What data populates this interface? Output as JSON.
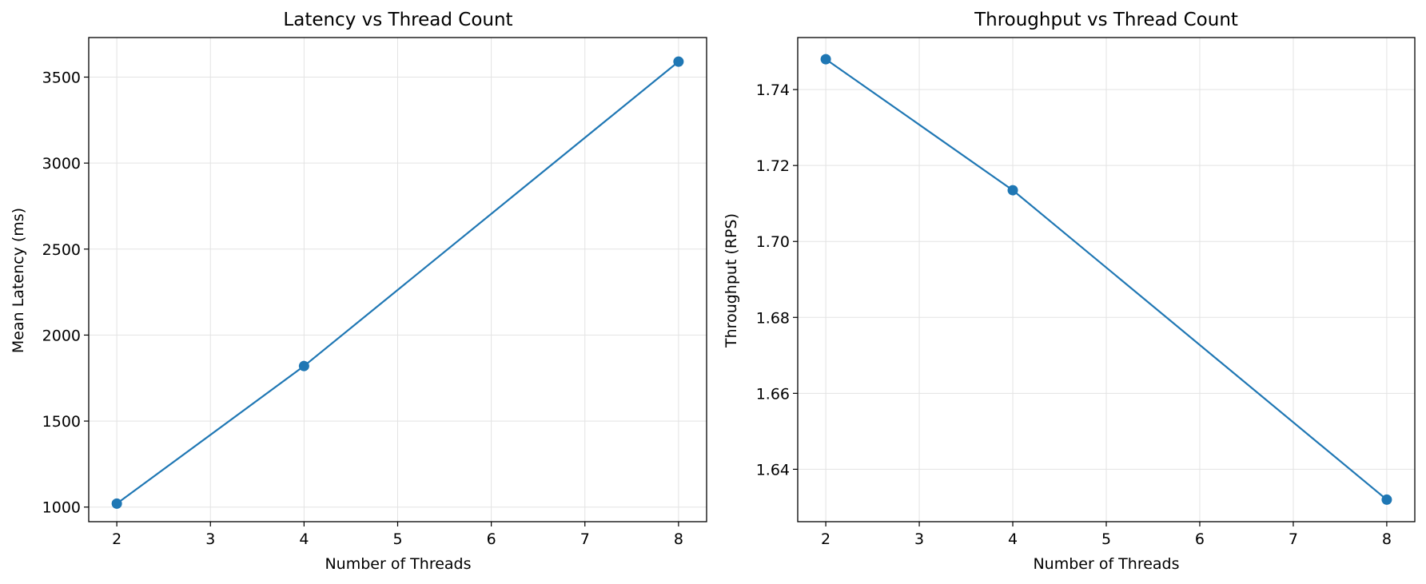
{
  "chart_data": [
    {
      "type": "line",
      "title": "Latency vs Thread Count",
      "xlabel": "Number of Threads",
      "ylabel": "Mean Latency (ms)",
      "x": [
        2,
        4,
        8
      ],
      "series": [
        {
          "values": [
            1020,
            1820,
            3590
          ]
        }
      ],
      "xlim": [
        1.7,
        8.3
      ],
      "ylim": [
        915,
        3730
      ],
      "xticks": [
        2,
        3,
        4,
        5,
        6,
        7,
        8
      ],
      "yticks": [
        1000,
        1500,
        2000,
        2500,
        3000,
        3500
      ],
      "ytick_labels": [
        "1000",
        "1500",
        "2000",
        "2500",
        "3000",
        "3500"
      ],
      "grid": true,
      "marker": "circle",
      "line_color": "#1f77b4"
    },
    {
      "type": "line",
      "title": "Throughput vs Thread Count",
      "xlabel": "Number of Threads",
      "ylabel": "Throughput (RPS)",
      "x": [
        2,
        4,
        8
      ],
      "series": [
        {
          "values": [
            1.748,
            1.7135,
            1.632
          ]
        }
      ],
      "xlim": [
        1.7,
        8.3
      ],
      "ylim": [
        1.6262,
        1.7537
      ],
      "xticks": [
        2,
        3,
        4,
        5,
        6,
        7,
        8
      ],
      "yticks": [
        1.64,
        1.66,
        1.68,
        1.7,
        1.72,
        1.74
      ],
      "ytick_labels": [
        "1.64",
        "1.66",
        "1.68",
        "1.70",
        "1.72",
        "1.74"
      ],
      "grid": true,
      "marker": "circle",
      "line_color": "#1f77b4"
    }
  ]
}
